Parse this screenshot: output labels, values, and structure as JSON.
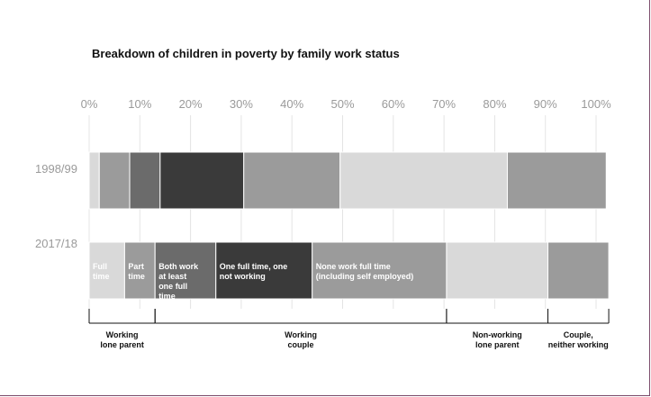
{
  "chart_data": {
    "type": "bar",
    "orientation": "horizontal",
    "stacked": true,
    "title": "Breakdown of children in poverty by family work status",
    "x_ticks": [
      "0%",
      "10%",
      "20%",
      "30%",
      "40%",
      "50%",
      "60%",
      "70%",
      "80%",
      "90%",
      "100%"
    ],
    "xlim": [
      0,
      100
    ],
    "categories": [
      "1998/99",
      "2017/18"
    ],
    "segment_colors": [
      "#d9d9d9",
      "#9b9b9b",
      "#6b6b6b",
      "#3a3a3a",
      "#9b9b9b",
      "#d9d9d9",
      "#9b9b9b"
    ],
    "series": [
      {
        "label": "Full time",
        "values": [
          2,
          7
        ]
      },
      {
        "label": "Part time",
        "values": [
          6,
          6
        ]
      },
      {
        "label": "Both work at least one full time",
        "values": [
          6,
          12
        ]
      },
      {
        "label": "One full time, one not working",
        "values": [
          16.5,
          19
        ]
      },
      {
        "label": "None work full time (including self employed)",
        "values": [
          19,
          26.5
        ]
      },
      {
        "label": "",
        "values": [
          33,
          20
        ]
      },
      {
        "label": "",
        "values": [
          19.5,
          12
        ]
      }
    ],
    "groups": [
      {
        "label": "Working lone parent",
        "from": 0,
        "to": 2
      },
      {
        "label": "Working couple",
        "from": 2,
        "to": 5
      },
      {
        "label": "Non-working lone parent",
        "from": 5,
        "to": 6
      },
      {
        "label": "Couple, neither working",
        "from": 6,
        "to": 7
      }
    ],
    "grid": true
  }
}
